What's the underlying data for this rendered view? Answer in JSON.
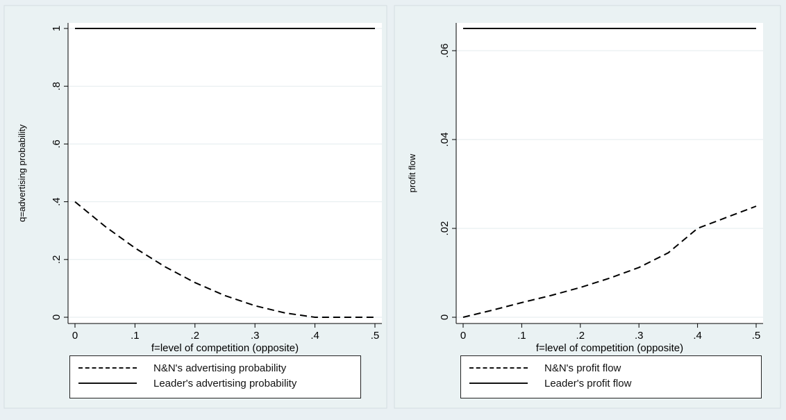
{
  "chart_data": [
    {
      "type": "line",
      "xlabel": "f=level of competition (opposite)",
      "ylabel": "q=advertising probability",
      "xlim": [
        0,
        0.5
      ],
      "ylim": [
        0,
        1
      ],
      "x_ticks": [
        "0",
        ".1",
        ".2",
        ".3",
        ".4",
        ".5"
      ],
      "y_ticks": [
        "0",
        ".2",
        ".4",
        ".6",
        ".8",
        "1"
      ],
      "x_tick_values": [
        0,
        0.1,
        0.2,
        0.3,
        0.4,
        0.5
      ],
      "y_tick_values": [
        0,
        0.2,
        0.4,
        0.6,
        0.8,
        1
      ],
      "grid": true,
      "legend_position": "bottom",
      "series": [
        {
          "name": "N&N's advertising probability",
          "style": "dashed",
          "x": [
            0,
            0.05,
            0.1,
            0.15,
            0.2,
            0.25,
            0.3,
            0.35,
            0.4,
            0.45,
            0.5
          ],
          "y": [
            0.4,
            0.315,
            0.24,
            0.175,
            0.12,
            0.075,
            0.04,
            0.015,
            0,
            0,
            0
          ]
        },
        {
          "name": "Leader's advertising probability",
          "style": "solid",
          "x": [
            0,
            0.5
          ],
          "y": [
            1,
            1
          ]
        }
      ]
    },
    {
      "type": "line",
      "xlabel": "f=level of competition (opposite)",
      "ylabel": "profit flow",
      "xlim": [
        0,
        0.5
      ],
      "ylim": [
        0,
        0.065
      ],
      "x_ticks": [
        "0",
        ".1",
        ".2",
        ".3",
        ".4",
        ".5"
      ],
      "y_ticks": [
        "0",
        ".02",
        ".04",
        ".06"
      ],
      "x_tick_values": [
        0,
        0.1,
        0.2,
        0.3,
        0.4,
        0.5
      ],
      "y_tick_values": [
        0,
        0.02,
        0.04,
        0.06
      ],
      "grid": true,
      "legend_position": "bottom",
      "series": [
        {
          "name": "N&N's profit flow",
          "style": "dashed",
          "x": [
            0,
            0.05,
            0.1,
            0.15,
            0.2,
            0.25,
            0.3,
            0.35,
            0.4,
            0.45,
            0.5
          ],
          "y": [
            0,
            0.0016,
            0.0033,
            0.0049,
            0.0067,
            0.0088,
            0.0112,
            0.0145,
            0.02,
            0.0225,
            0.025
          ]
        },
        {
          "name": "Leader's profit flow",
          "style": "solid",
          "x": [
            0,
            0.5
          ],
          "y": [
            0.065,
            0.065
          ]
        }
      ]
    }
  ]
}
